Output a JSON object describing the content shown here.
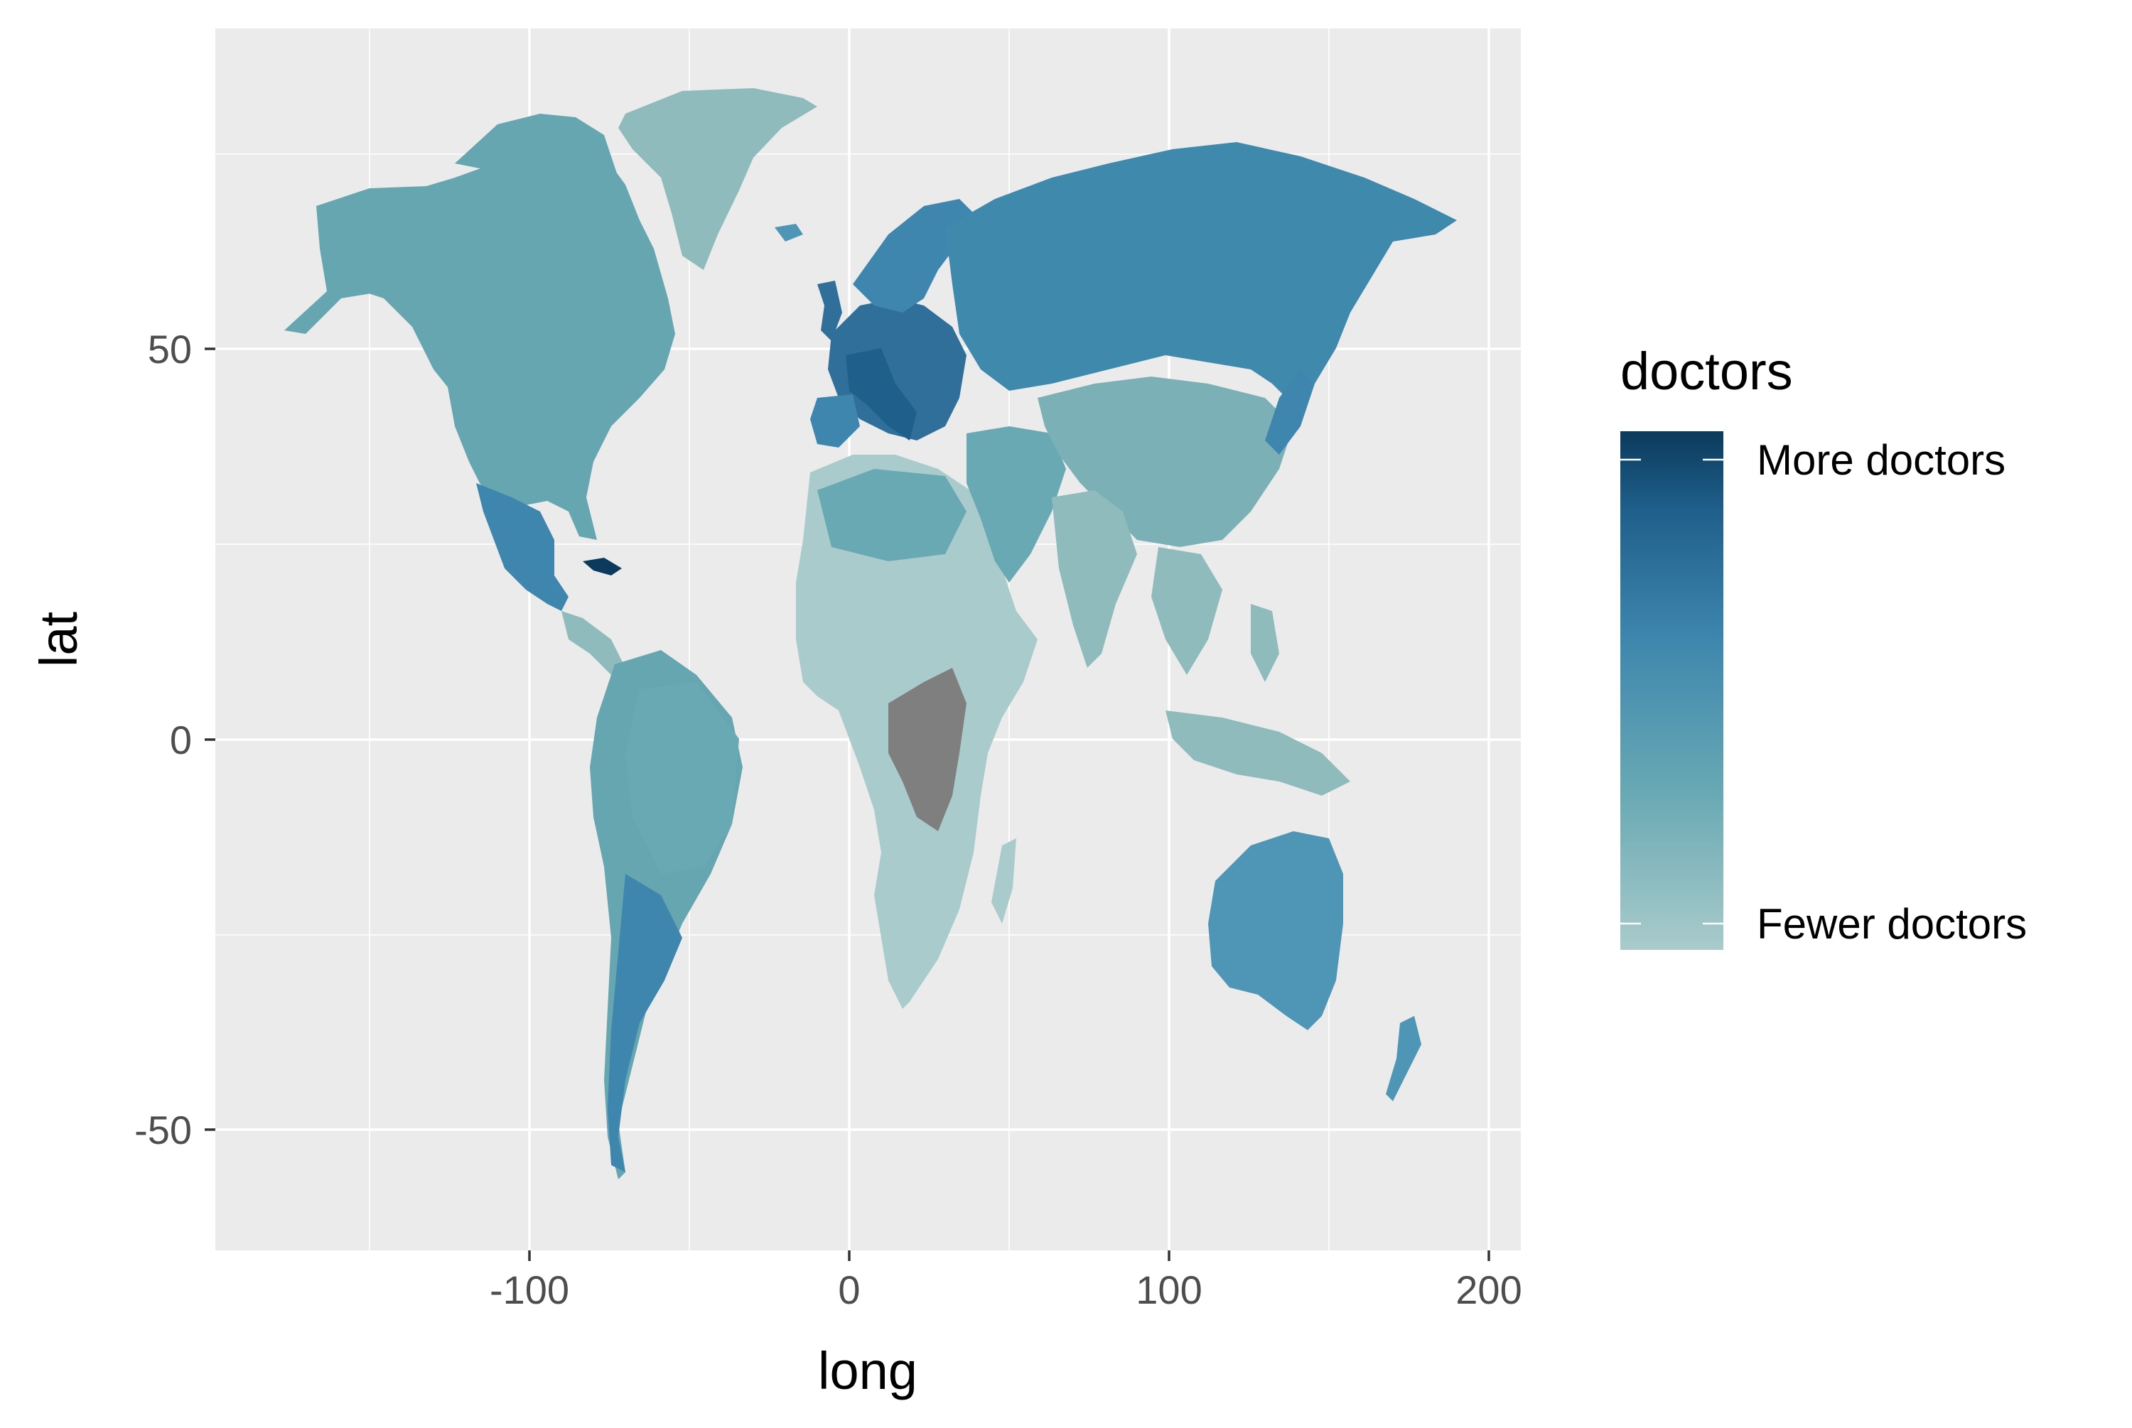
{
  "chart_data": {
    "type": "choropleth map",
    "x_axis": {
      "title": "long",
      "range": [
        -200,
        210
      ],
      "breaks": [
        -100,
        0,
        100,
        200
      ],
      "tick_labels": [
        "-100",
        "0",
        "100",
        "200"
      ]
    },
    "y_axis": {
      "title": "lat",
      "range": [
        -65,
        90
      ],
      "breaks": [
        -50,
        0,
        50
      ],
      "tick_labels": [
        "-50",
        "0",
        "50"
      ]
    },
    "grid": true,
    "legend": {
      "title": "doctors",
      "position": "right",
      "labels": [
        "More doctors",
        "Fewer doctors"
      ],
      "colors": [
        "#0b3a5c",
        "#1f5f8b",
        "#3e86ad",
        "#69a9b4",
        "#a9cbcb"
      ]
    },
    "colors": {
      "panel_background": "#ebebeb",
      "grid_line": "#ffffff",
      "missing": "#7f7f7f"
    }
  }
}
